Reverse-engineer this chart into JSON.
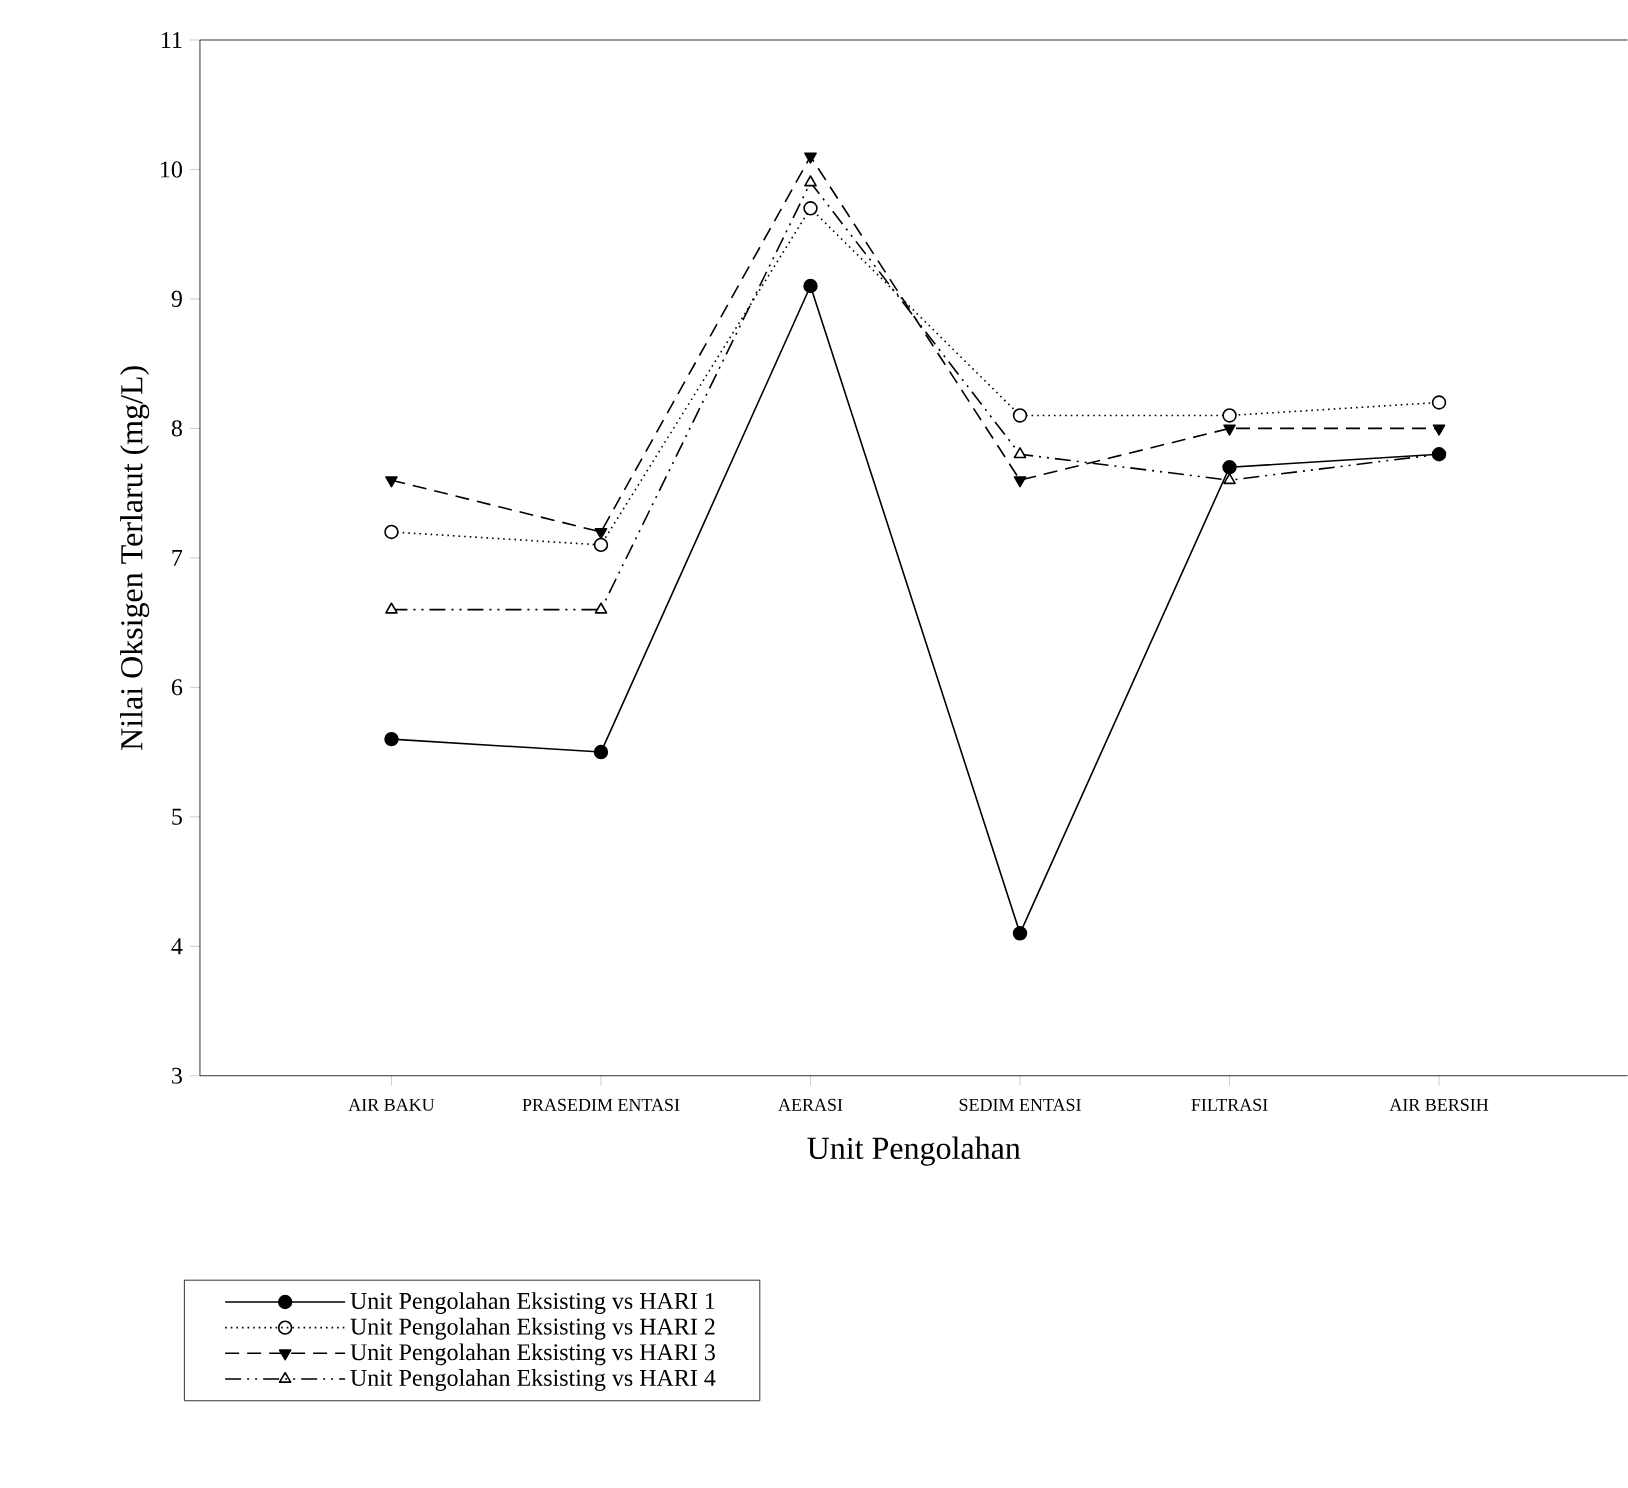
{
  "chart_data": {
    "type": "line",
    "xlabel": "Unit Pengolahan",
    "ylabel": "Nilai Oksigen Terlarut (mg/L)",
    "categories": [
      "AIR BAKU",
      "PRASEDIM ENTASI",
      "AERASI",
      "SEDIM ENTASI",
      "FILTRASI",
      "AIR BERSIH"
    ],
    "series": [
      {
        "name": "Unit Pengolahan Eksisting vs HARI 1",
        "color": "#000000",
        "marker": "circle",
        "line_style": "solid",
        "values": [
          5.6,
          5.5,
          9.1,
          4.1,
          7.7,
          7.8
        ]
      },
      {
        "name": "Unit Pengolahan Eksisting vs HARI 2",
        "color": "#000000",
        "marker": "circle_open",
        "line_style": "dotted",
        "values": [
          7.2,
          7.1,
          9.7,
          8.1,
          8.1,
          8.2
        ]
      },
      {
        "name": "Unit Pengolahan Eksisting vs HARI 3",
        "color": "#000000",
        "marker": "triangle_down",
        "line_style": "dashed",
        "values": [
          7.6,
          7.2,
          10.1,
          7.6,
          8.0,
          8.0
        ]
      },
      {
        "name": "Unit Pengolahan Eksisting vs HARI 4",
        "color": "#000000",
        "marker": "triangle_open",
        "line_style": "dashdot",
        "values": [
          6.6,
          6.6,
          9.9,
          7.8,
          7.6,
          7.8
        ]
      }
    ],
    "ylim": [
      3,
      11
    ],
    "yticks": [
      3,
      4,
      5,
      6,
      7,
      8,
      9,
      10,
      11
    ],
    "grid": false,
    "legend": "bottom"
  }
}
